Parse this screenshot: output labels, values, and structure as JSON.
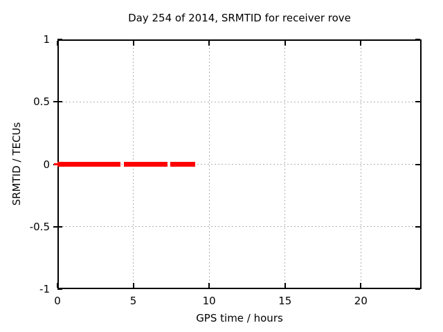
{
  "colors": {
    "background": "#ffffff",
    "border": "#000000",
    "grid": "#b0b0b0",
    "text": "#000000",
    "series_red": "#ff0000"
  },
  "chart_data": {
    "type": "line",
    "title": "Day 254 of 2014, SRMTID for receiver rove",
    "xlabel": "GPS time / hours",
    "ylabel": "SRMTID / TECUs",
    "xlim": [
      0,
      24
    ],
    "ylim": [
      -1,
      1
    ],
    "xticks": [
      0,
      5,
      10,
      15,
      20
    ],
    "yticks": [
      -1,
      -0.5,
      0,
      0.5,
      1
    ],
    "grid": true,
    "legend": "none",
    "series": [
      {
        "name": "SRMTID",
        "color": "#ff0000",
        "y_value": 0,
        "style": "thick horizontal line at y=0",
        "segments_hours": [
          [
            0,
            4.17
          ],
          [
            4.36,
            7.27
          ],
          [
            7.45,
            9.09
          ]
        ],
        "point_at_zero_overhang": true
      }
    ]
  }
}
